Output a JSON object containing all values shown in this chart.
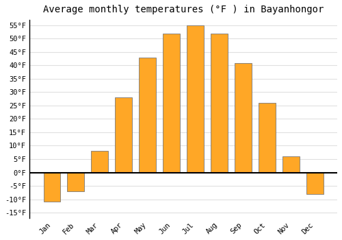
{
  "title": "Average monthly temperatures (°F ) in Bayanhongor",
  "months": [
    "Jan",
    "Feb",
    "Mar",
    "Apr",
    "May",
    "Jun",
    "Jul",
    "Aug",
    "Sep",
    "Oct",
    "Nov",
    "Dec"
  ],
  "values": [
    -11,
    -7,
    8,
    28,
    43,
    52,
    55,
    52,
    41,
    26,
    6,
    -8
  ],
  "bar_color": "#FFA726",
  "bar_edge_color": "#777777",
  "ylim": [
    -17,
    57
  ],
  "yticks": [
    -15,
    -10,
    -5,
    0,
    5,
    10,
    15,
    20,
    25,
    30,
    35,
    40,
    45,
    50,
    55
  ],
  "ytick_labels": [
    "-15°F",
    "-10°F",
    "-5°F",
    "0°F",
    "5°F",
    "10°F",
    "15°F",
    "20°F",
    "25°F",
    "30°F",
    "35°F",
    "40°F",
    "45°F",
    "50°F",
    "55°F"
  ],
  "background_color": "#ffffff",
  "plot_bg_color": "#ffffff",
  "grid_color": "#e0e0e0",
  "zero_line_color": "#000000",
  "title_fontsize": 10,
  "tick_fontsize": 7.5,
  "bar_width": 0.7
}
